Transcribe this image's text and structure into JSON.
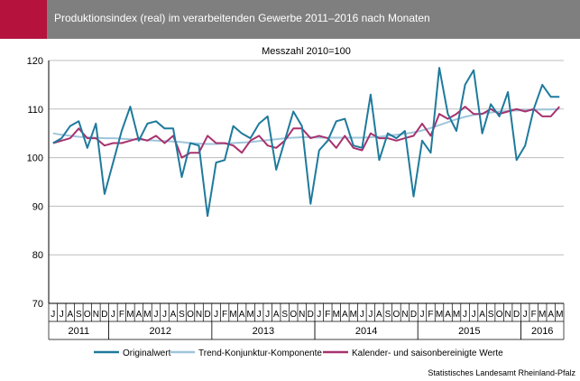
{
  "header": {
    "title": "Produktionsindex (real) im verarbeitenden Gewerbe 2011–2016 nach Monaten",
    "accent_color": "#b5123e",
    "background_color": "#7f7f7f"
  },
  "source": "Statistisches Landesamt Rheinland-Pfalz",
  "chart_data": {
    "type": "line",
    "subtitle": "Messzahl 2010=100",
    "ylim": [
      70,
      120
    ],
    "yticks": [
      70,
      80,
      90,
      100,
      110,
      120
    ],
    "grid": true,
    "legend_position": "bottom",
    "x_month_labels": [
      "J",
      "J",
      "A",
      "S",
      "O",
      "N",
      "D",
      "J",
      "F",
      "M",
      "A",
      "M",
      "J",
      "J",
      "A",
      "S",
      "O",
      "N",
      "D",
      "J",
      "F",
      "M",
      "A",
      "M",
      "J",
      "J",
      "A",
      "S",
      "O",
      "N",
      "D",
      "J",
      "F",
      "M",
      "A",
      "M",
      "J",
      "J",
      "A",
      "S",
      "O",
      "N",
      "D",
      "J",
      "F",
      "M",
      "A",
      "M",
      "J",
      "J",
      "A",
      "S",
      "O",
      "N",
      "D",
      "J",
      "F",
      "M",
      "A",
      "M"
    ],
    "years": [
      {
        "label": "2011",
        "start": 0,
        "count": 7
      },
      {
        "label": "2012",
        "start": 7,
        "count": 12
      },
      {
        "label": "2013",
        "start": 19,
        "count": 12
      },
      {
        "label": "2014",
        "start": 31,
        "count": 12
      },
      {
        "label": "2015",
        "start": 43,
        "count": 12
      },
      {
        "label": "2016",
        "start": 55,
        "count": 5
      }
    ],
    "series": [
      {
        "name": "Originalwert",
        "color": "#1f7a9c",
        "values": [
          103,
          104,
          106.5,
          107.5,
          102,
          107,
          92.5,
          99,
          105.5,
          110.5,
          103.5,
          107,
          107.5,
          106,
          106,
          96,
          103,
          102.5,
          88,
          99,
          99.5,
          106.5,
          105,
          104,
          107,
          108.5,
          97.5,
          103.5,
          109.5,
          106.5,
          90.5,
          101.5,
          103.5,
          107.5,
          108,
          102.5,
          102,
          113,
          99.5,
          105,
          104,
          105.5,
          92,
          103.5,
          101,
          118.5,
          109,
          105.5,
          115,
          118,
          105,
          111,
          108.5,
          113.5,
          99.5,
          102.5,
          110,
          115,
          112.5,
          112.5
        ]
      },
      {
        "name": "Trend-Konjunktur-Komponente",
        "color": "#9fc5db",
        "values": [
          105,
          104.7,
          104.5,
          104.3,
          104.2,
          104.1,
          104,
          104,
          103.9,
          103.8,
          103.7,
          103.6,
          103.5,
          103.4,
          103.3,
          103.2,
          103,
          102.9,
          102.8,
          102.8,
          102.9,
          103,
          103.1,
          103.2,
          103.4,
          103.6,
          103.8,
          104,
          104.1,
          104.2,
          104.2,
          104.1,
          104.1,
          104.1,
          104.1,
          104.1,
          104.1,
          104.2,
          104.3,
          104.5,
          104.7,
          104.9,
          105.2,
          105.6,
          106.1,
          106.7,
          107.3,
          107.9,
          108.4,
          108.8,
          109.1,
          109.3,
          109.5,
          109.6,
          109.7,
          109.8,
          109.8,
          109.9,
          109.9,
          110
        ]
      },
      {
        "name": "Kalender- und saisonbereinigte Werte",
        "color": "#a8326e",
        "values": [
          103,
          103.5,
          104,
          106,
          104,
          104,
          102.5,
          103,
          103,
          103.5,
          104,
          103.5,
          104.5,
          103,
          104.5,
          100,
          101,
          101,
          104.5,
          103,
          103,
          102.5,
          101,
          103.5,
          104.5,
          102.5,
          102,
          103.5,
          106,
          106,
          104,
          104.5,
          104,
          102,
          104.5,
          102,
          101.5,
          105,
          104,
          104,
          103.5,
          104,
          104.5,
          107,
          104.5,
          109,
          108,
          109,
          110.5,
          109,
          109,
          110,
          109,
          109.5,
          110,
          109.5,
          110,
          108.5,
          108.5,
          110.5
        ]
      }
    ]
  }
}
